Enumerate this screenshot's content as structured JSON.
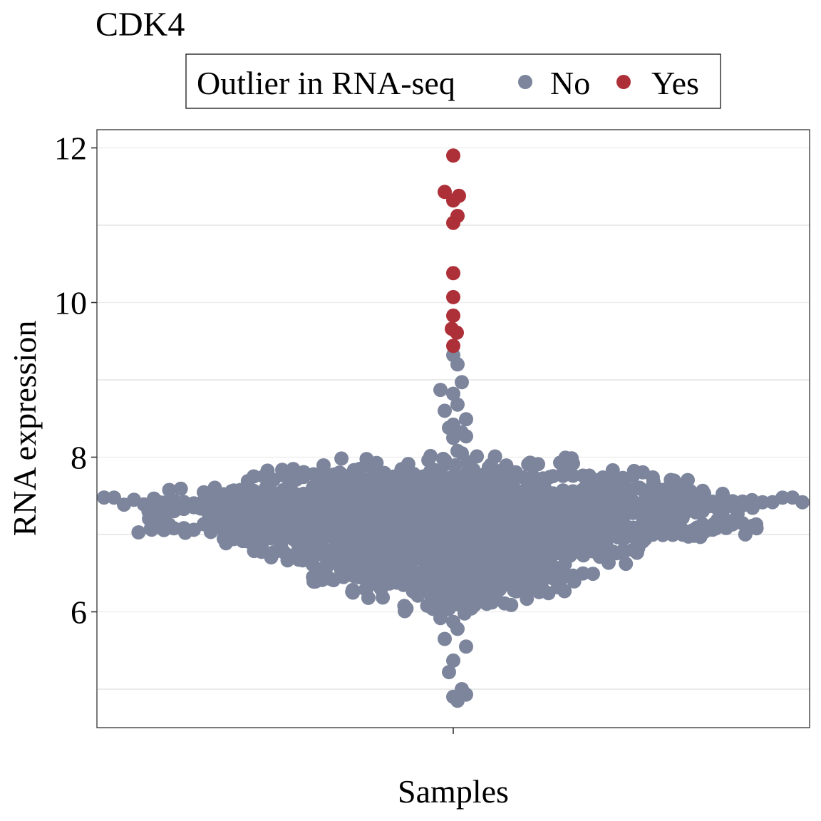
{
  "chart_data": {
    "type": "scatter",
    "subtype": "beeswarm",
    "title": "CDK4",
    "xlabel": "Samples",
    "ylabel": "RNA expression",
    "ylim": [
      4.5,
      12.25
    ],
    "yticks": [
      6,
      8,
      10,
      12
    ],
    "minor_gridlines_y": [
      5,
      7,
      9,
      11
    ],
    "grid": true,
    "legend": {
      "title": "Outlier in RNA-seq",
      "placement": "top",
      "entries": [
        {
          "label": "No",
          "color": "#7c859c"
        },
        {
          "label": "Yes",
          "color": "#ad3039"
        }
      ]
    },
    "colors": {
      "no": "#7c859c",
      "yes": "#ad3039"
    },
    "series": [
      {
        "name": "Yes",
        "color": "#ad3039",
        "values": [
          11.9,
          11.43,
          11.38,
          11.32,
          11.12,
          11.03,
          10.38,
          10.07,
          9.83,
          9.66,
          9.61,
          9.44
        ]
      },
      {
        "name": "No",
        "color": "#7c859c",
        "summary": {
          "n_approx": 1400,
          "center": 7.0,
          "max": 9.32,
          "min": 4.85
        },
        "tail_values": [
          9.32,
          9.2,
          8.97,
          8.87,
          8.82,
          8.68,
          8.6,
          8.49,
          8.42,
          8.38,
          8.32,
          8.27,
          8.25,
          8.08,
          8.05,
          5.92,
          5.87,
          5.78,
          5.65,
          5.55,
          5.37,
          5.22,
          5.0,
          4.93,
          4.9,
          4.85
        ]
      }
    ]
  }
}
